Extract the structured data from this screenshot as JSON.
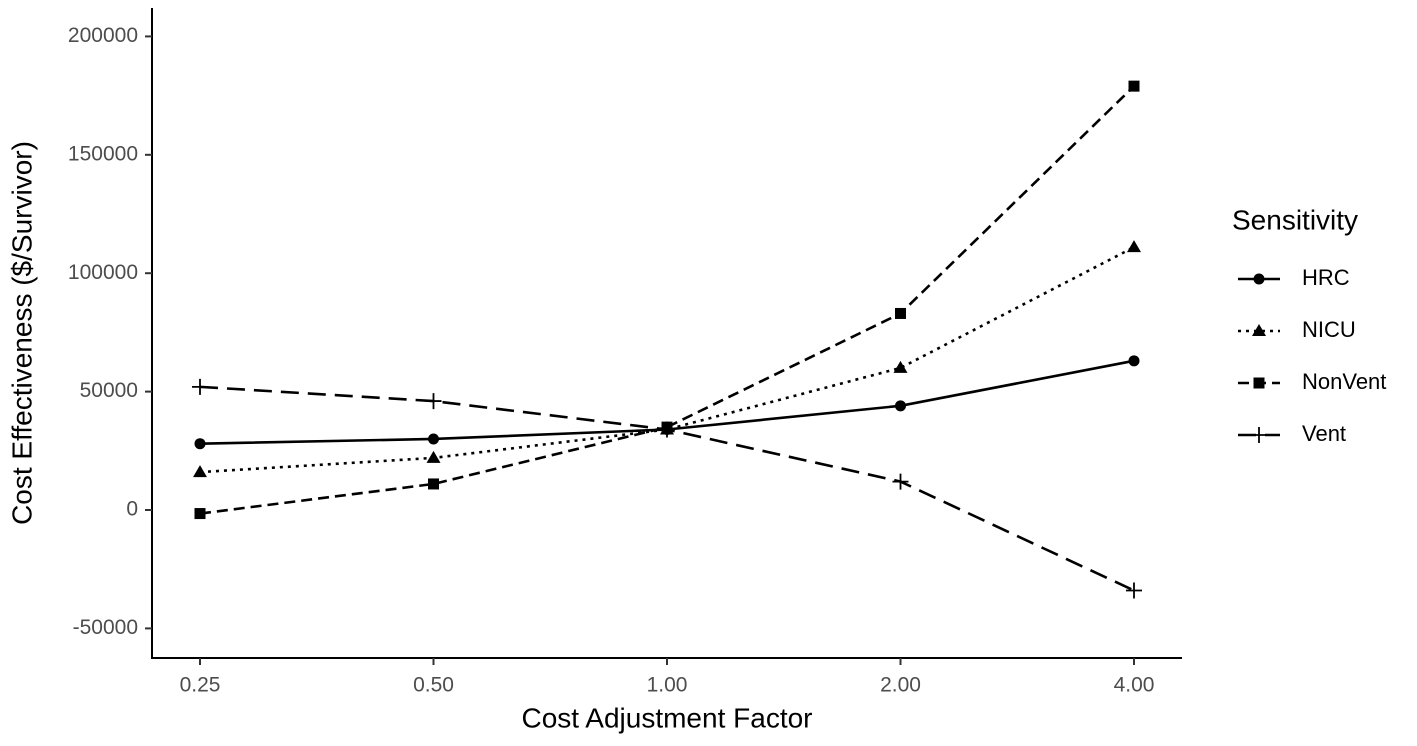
{
  "chart_data": {
    "type": "line",
    "x_label": "Cost Adjustment Factor",
    "y_label": "Cost Effectiveness ($/Survivor)",
    "categories": [
      "0.25",
      "0.50",
      "1.00",
      "2.00",
      "4.00"
    ],
    "legend_title": "Sensitivity",
    "legend_position": "right",
    "grid": false,
    "ylim": [
      -62500,
      212000
    ],
    "yticks": [
      -50000,
      0,
      50000,
      100000,
      150000,
      200000
    ],
    "series": [
      {
        "name": "HRC",
        "color": "#000000",
        "linetype": "solid",
        "shape": "circle",
        "values": [
          28000,
          30000,
          34000,
          44000,
          63000
        ]
      },
      {
        "name": "NICU",
        "color": "#000000",
        "linetype": "dotted",
        "shape": "triangle",
        "values": [
          16000,
          22000,
          34000,
          60000,
          111000
        ]
      },
      {
        "name": "NonVent",
        "color": "#000000",
        "linetype": "dashed",
        "shape": "square",
        "values": [
          -1500,
          11000,
          35000,
          83000,
          179000
        ]
      },
      {
        "name": "Vent",
        "color": "#000000",
        "linetype": "longdash",
        "shape": "plus",
        "values": [
          52000,
          46000,
          34000,
          12000,
          -34000
        ]
      }
    ]
  }
}
